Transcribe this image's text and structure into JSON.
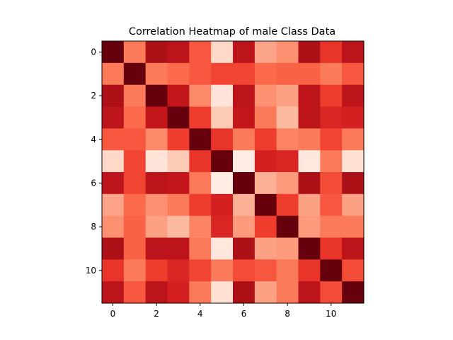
{
  "chart_data": {
    "type": "heatmap",
    "title": "Correlation Heatmap of male Class Data",
    "colormap": "Reds",
    "grid": false,
    "rows": 12,
    "cols": 12,
    "xticks": [
      0,
      2,
      4,
      6,
      8,
      10
    ],
    "yticks": [
      0,
      2,
      4,
      6,
      8,
      10
    ],
    "xtick_labels": [
      "0",
      "2",
      "4",
      "6",
      "8",
      "10"
    ],
    "ytick_labels": [
      "0",
      "2",
      "4",
      "6",
      "8",
      "10"
    ],
    "values": [
      [
        1.0,
        0.45,
        0.85,
        0.8,
        0.55,
        0.15,
        0.8,
        0.32,
        0.38,
        0.85,
        0.65,
        0.8
      ],
      [
        0.45,
        1.0,
        0.45,
        0.5,
        0.55,
        0.6,
        0.6,
        0.5,
        0.52,
        0.52,
        0.45,
        0.55
      ],
      [
        0.85,
        0.45,
        1.0,
        0.78,
        0.4,
        0.1,
        0.8,
        0.38,
        0.33,
        0.8,
        0.62,
        0.8
      ],
      [
        0.8,
        0.5,
        0.78,
        1.0,
        0.62,
        0.2,
        0.78,
        0.45,
        0.25,
        0.8,
        0.7,
        0.72
      ],
      [
        0.55,
        0.55,
        0.4,
        0.62,
        1.0,
        0.65,
        0.45,
        0.62,
        0.42,
        0.45,
        0.6,
        0.45
      ],
      [
        0.15,
        0.6,
        0.1,
        0.2,
        0.65,
        1.0,
        0.05,
        0.72,
        0.7,
        0.08,
        0.45,
        0.12
      ],
      [
        0.8,
        0.6,
        0.8,
        0.78,
        0.45,
        0.05,
        1.0,
        0.28,
        0.35,
        0.85,
        0.58,
        0.85
      ],
      [
        0.32,
        0.5,
        0.38,
        0.45,
        0.62,
        0.72,
        0.28,
        1.0,
        0.62,
        0.33,
        0.55,
        0.33
      ],
      [
        0.38,
        0.52,
        0.33,
        0.25,
        0.42,
        0.7,
        0.35,
        0.62,
        1.0,
        0.35,
        0.45,
        0.45
      ],
      [
        0.85,
        0.52,
        0.8,
        0.8,
        0.45,
        0.08,
        0.85,
        0.33,
        0.35,
        1.0,
        0.65,
        0.8
      ],
      [
        0.65,
        0.45,
        0.62,
        0.7,
        0.6,
        0.45,
        0.58,
        0.55,
        0.45,
        0.65,
        1.0,
        0.58
      ],
      [
        0.8,
        0.55,
        0.8,
        0.72,
        0.45,
        0.12,
        0.85,
        0.33,
        0.45,
        0.8,
        0.58,
        1.0
      ]
    ]
  }
}
